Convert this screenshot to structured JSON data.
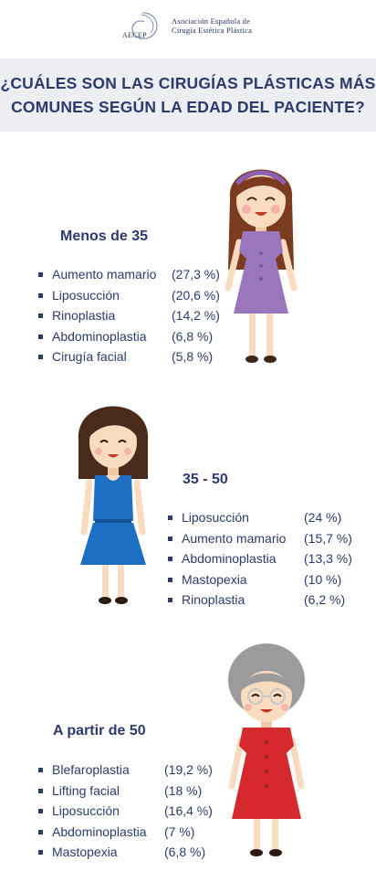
{
  "header": {
    "logo_abbr": "AECEP",
    "org_line1": "Asociación Española de",
    "org_line2": "Cirugía Estética Plástica"
  },
  "banner": {
    "title_line1": "¿CUÁLES SON LAS CIRUGÍAS PLÁSTICAS MÁS",
    "title_line2": "COMUNES SEGÚN LA EDAD DEL PACIENTE?"
  },
  "groups": [
    {
      "title": "Menos de 35",
      "items": [
        {
          "name": "Aumento mamario",
          "pct": "(27,3 %)"
        },
        {
          "name": "Liposucción",
          "pct": "(20,6 %)"
        },
        {
          "name": "Rinoplastia",
          "pct": "(14,2 %)"
        },
        {
          "name": "Abdominoplastia",
          "pct": "(6,8 %)"
        },
        {
          "name": "Cirugía facial",
          "pct": "(5,8 %)"
        }
      ]
    },
    {
      "title": "35 - 50",
      "items": [
        {
          "name": "Liposucción",
          "pct": "(24 %)"
        },
        {
          "name": "Aumento mamario",
          "pct": "(15,7 %)"
        },
        {
          "name": "Abdominoplastia",
          "pct": "(13,3 %)"
        },
        {
          "name": "Mastopexia",
          "pct": "(10 %)"
        },
        {
          "name": "Rinoplastia",
          "pct": "(6,2 %)"
        }
      ]
    },
    {
      "title": "A partir de 50",
      "items": [
        {
          "name": "Blefaroplastia",
          "pct": "(19,2 %)"
        },
        {
          "name": "Lifting facial",
          "pct": "(18 %)"
        },
        {
          "name": "Liposucción",
          "pct": "(16,4 %)"
        },
        {
          "name": "Abdominoplastia",
          "pct": "(7 %)"
        },
        {
          "name": "Mastopexia",
          "pct": "(6,8 %)"
        }
      ]
    }
  ],
  "colors": {
    "text": "#2d3a6e",
    "banner_bg": "#eceef2",
    "dress_young": "#9a77bd",
    "dress_middle": "#1d6fc4",
    "dress_senior": "#d42a2e",
    "hair_brown": "#7a3b21",
    "hair_dark": "#4a2a1a",
    "hair_grey": "#9b9b9b",
    "skin": "#f9dcc0"
  }
}
